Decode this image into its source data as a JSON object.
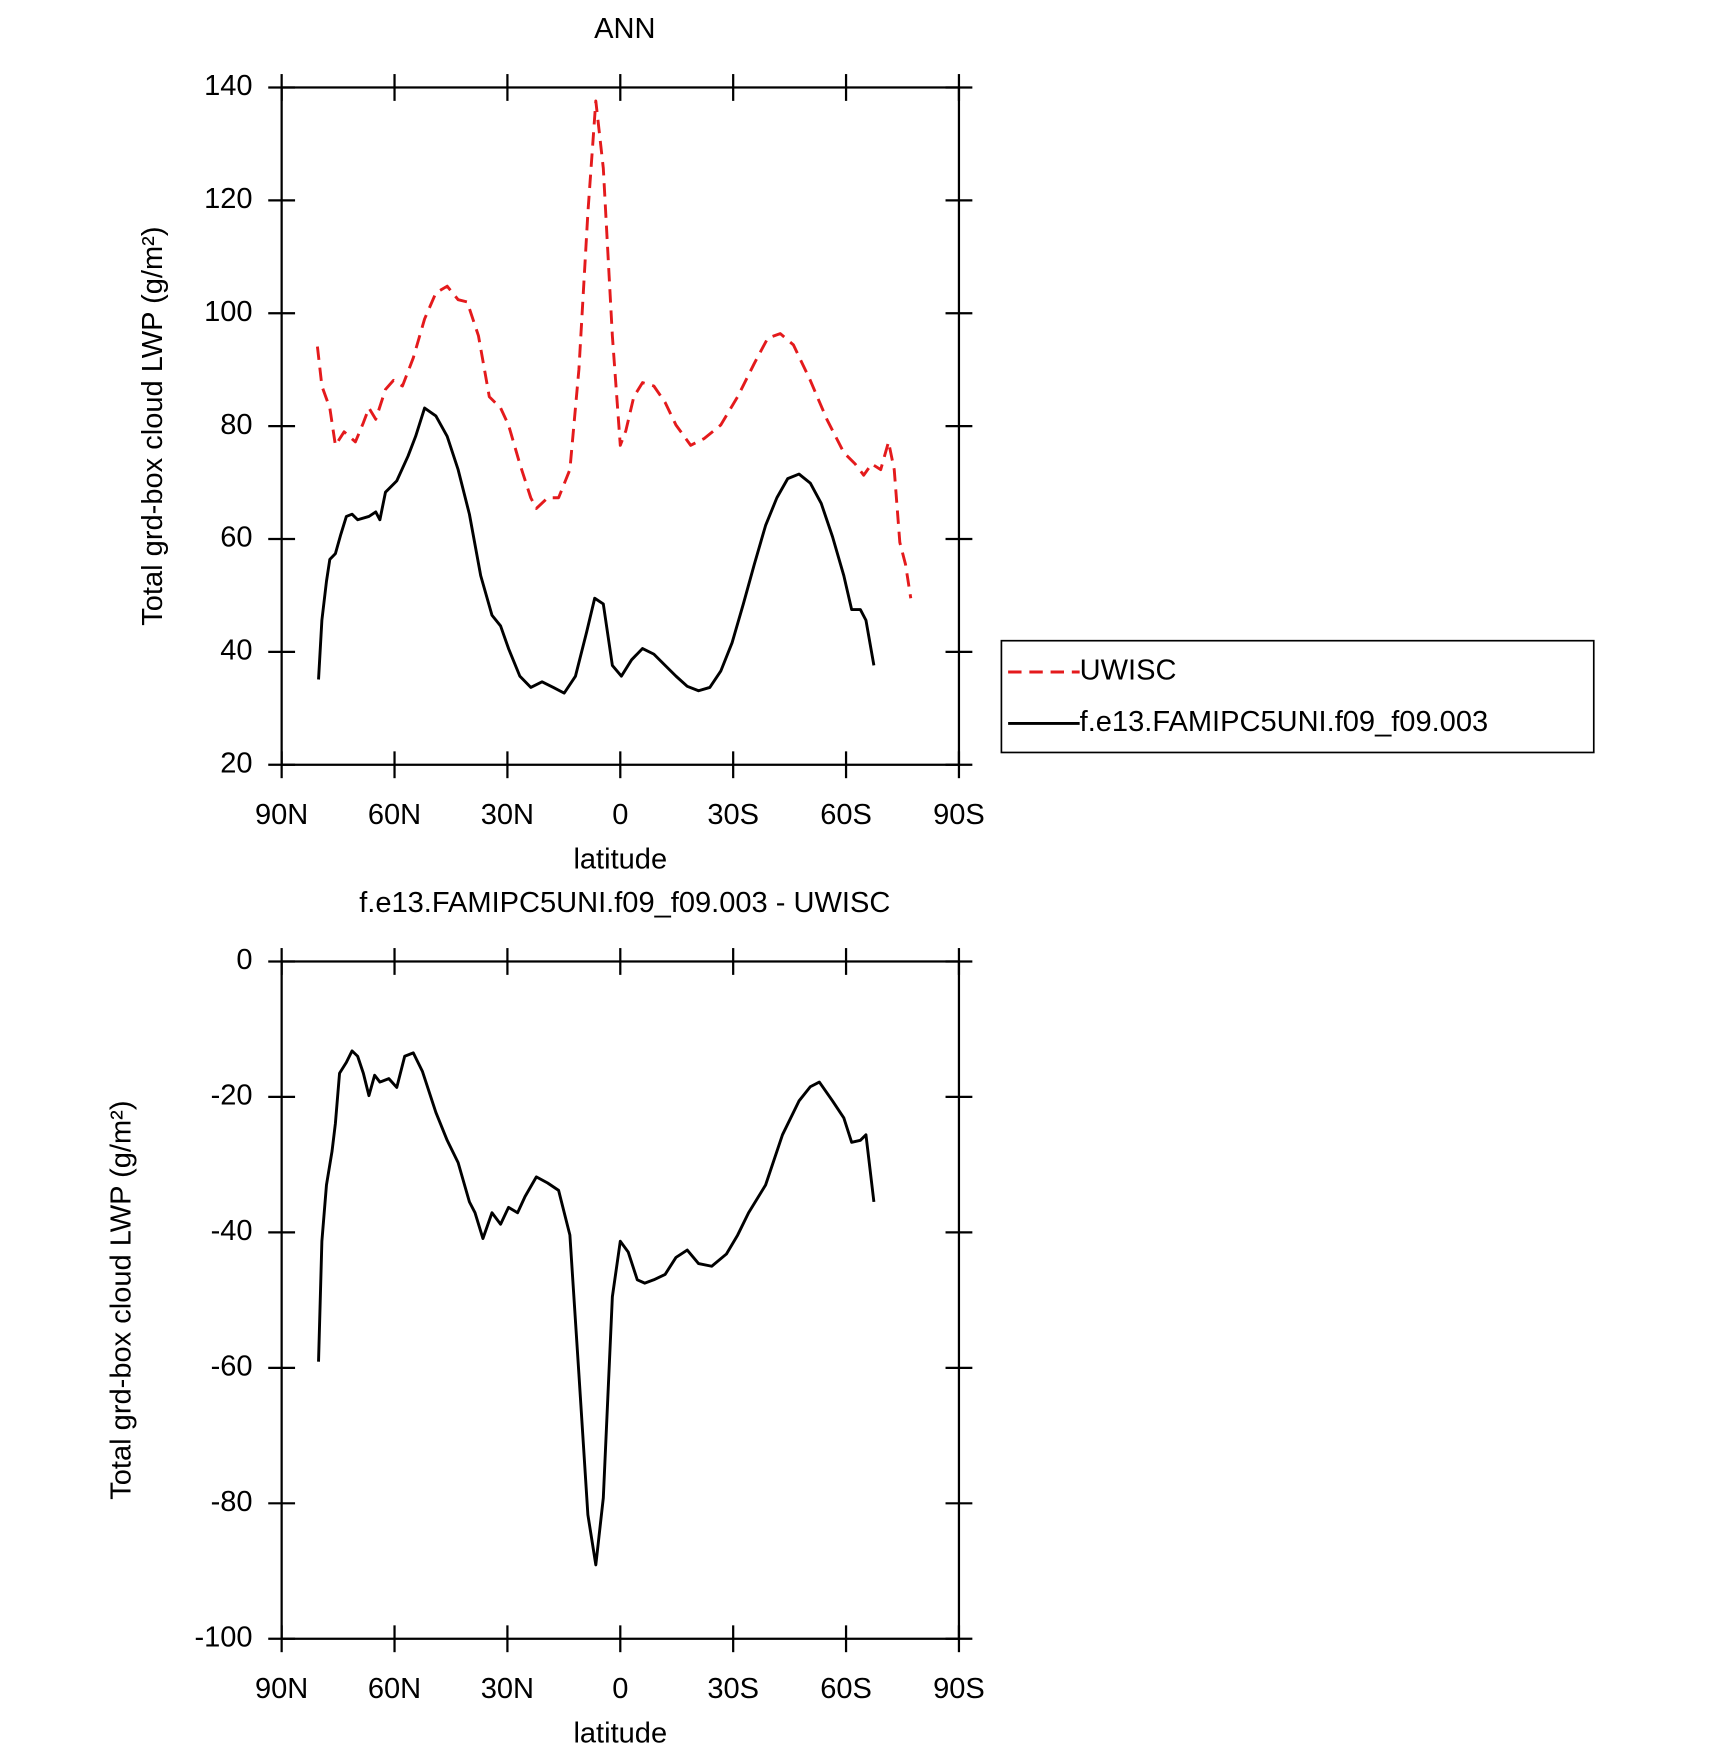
{
  "chart_data": [
    {
      "type": "line",
      "title": "ANN",
      "x_label": "latitude",
      "y_label": "Total grd-box cloud LWP (g/m²)",
      "xlim": [
        90,
        -90
      ],
      "ylim": [
        20,
        140
      ],
      "xticks": [
        {
          "value": 90,
          "label": "90N"
        },
        {
          "value": 60,
          "label": "60N"
        },
        {
          "value": 30,
          "label": "30N"
        },
        0,
        {
          "value": -30,
          "label": "30S"
        },
        {
          "value": -60,
          "label": "60S"
        },
        {
          "value": -90,
          "label": "90S"
        }
      ],
      "yticks": [
        20,
        40,
        60,
        80,
        100,
        120,
        140
      ],
      "legend": "outside right",
      "series": [
        {
          "name": "UWISC",
          "color": "#e41a1c",
          "dash": true,
          "x": [
            80.5,
            79.3,
            77.2,
            75.7,
            73.4,
            70.4,
            68.3,
            66.8,
            65,
            62.4,
            60.3,
            57.9,
            55,
            52,
            49,
            46,
            43.1,
            40.7,
            37.7,
            34.8,
            31.8,
            29.7,
            26.7,
            23.8,
            22.3,
            19.3,
            16.4,
            13.4,
            11,
            8.6,
            6.5,
            4.5,
            2.1,
            0,
            -1.5,
            -3.6,
            -5.9,
            -8.9,
            -11.9,
            -14.8,
            -18.7,
            -22.3,
            -26.7,
            -31.2,
            -35.6,
            -39.2,
            -42.5,
            -46,
            -50.5,
            -54.9,
            -59.4,
            -62.4,
            -64.7,
            -66.8,
            -69.2,
            -71.3,
            -72.8,
            -74.3,
            -75.8,
            -77.2
          ],
          "values": [
            94.1,
            87.1,
            83.2,
            76.6,
            79,
            77.2,
            80.6,
            83.2,
            81.2,
            86.5,
            88.1,
            87.1,
            92.1,
            99,
            103.6,
            104.8,
            102.4,
            102,
            96,
            85.2,
            83.2,
            80.2,
            73.3,
            67.3,
            65.4,
            67.3,
            67.3,
            72.3,
            90.1,
            117.8,
            137.6,
            125.7,
            96,
            76.6,
            79.2,
            85.2,
            87.7,
            87.1,
            84.2,
            80.2,
            76.6,
            77.8,
            80.2,
            85.2,
            91.1,
            95.6,
            96.4,
            94.4,
            88.1,
            81.2,
            75.3,
            73.3,
            71.3,
            73.3,
            72.3,
            77.2,
            72.3,
            59.4,
            55.5,
            49.5
          ]
        },
        {
          "name": "f.e13.FAMIPC5UNI.f09_f09.003",
          "color": "#000000",
          "x": [
            80.2,
            79.3,
            78.1,
            77.2,
            75.7,
            74.3,
            72.8,
            71.3,
            69.8,
            66.8,
            65,
            63.9,
            62.4,
            59.4,
            56.4,
            54.4,
            52,
            49,
            46,
            43.1,
            40.1,
            37.1,
            34.1,
            31.8,
            29.7,
            26.7,
            23.8,
            20.8,
            17.8,
            14.9,
            11.9,
            8.9,
            6.8,
            4.5,
            2.1,
            -0.3,
            -3,
            -5.9,
            -8.9,
            -11.9,
            -14.8,
            -17.8,
            -20.8,
            -23.8,
            -26.7,
            -29.7,
            -32.7,
            -35.6,
            -38.6,
            -41.6,
            -44.5,
            -47.5,
            -50.5,
            -53.4,
            -56.4,
            -59.4,
            -61.5,
            -63.8,
            -65.3,
            -67.4
          ],
          "values": [
            35.1,
            45.6,
            52.5,
            56.4,
            57.4,
            60.8,
            64,
            64.4,
            63.4,
            64,
            64.8,
            63.4,
            68.3,
            70.3,
            74.7,
            78.2,
            83.2,
            81.8,
            78.2,
            72.3,
            64.4,
            53.5,
            46.5,
            44.6,
            40.6,
            35.7,
            33.7,
            34.7,
            33.7,
            32.7,
            35.7,
            43.6,
            49.5,
            48.5,
            37.6,
            35.7,
            38.6,
            40.6,
            39.6,
            37.6,
            35.7,
            33.9,
            33.1,
            33.7,
            36.6,
            41.6,
            48.5,
            55.5,
            62.4,
            67.3,
            70.7,
            71.5,
            69.9,
            66.3,
            60.4,
            53.5,
            47.5,
            47.5,
            45.6,
            37.6
          ]
        }
      ]
    },
    {
      "type": "line",
      "title": "f.e13.FAMIPC5UNI.f09_f09.003 - UWISC",
      "x_label": "latitude",
      "y_label": "Total grd-box cloud LWP (g/m²)",
      "xlim": [
        90,
        -90
      ],
      "ylim": [
        -100,
        0
      ],
      "xticks": [
        {
          "value": 90,
          "label": "90N"
        },
        {
          "value": 60,
          "label": "60N"
        },
        {
          "value": 30,
          "label": "30N"
        },
        0,
        {
          "value": -30,
          "label": "30S"
        },
        {
          "value": -60,
          "label": "60S"
        },
        {
          "value": -90,
          "label": "90S"
        }
      ],
      "yticks": [
        -100,
        -80,
        -60,
        -40,
        -20,
        0
      ],
      "series": [
        {
          "color": "#000000",
          "x": [
            80.2,
            79.3,
            78.1,
            76.6,
            75.7,
            74.6,
            72.8,
            71.3,
            69.8,
            68.3,
            66.8,
            65.3,
            63.9,
            61.5,
            59.4,
            57.3,
            55,
            52.6,
            49,
            46,
            43.1,
            40.1,
            38.6,
            36.5,
            34.1,
            31.8,
            29.7,
            27.3,
            25.3,
            22.3,
            19.3,
            16.4,
            13.4,
            11,
            8.6,
            6.5,
            4.5,
            2.1,
            0,
            -2.1,
            -4.5,
            -6.5,
            -8.9,
            -11.9,
            -14.8,
            -17.8,
            -20.8,
            -24.3,
            -28.2,
            -31.2,
            -34.1,
            -38.6,
            -43.1,
            -47.5,
            -50.5,
            -52.9,
            -56.4,
            -59.4,
            -61.5,
            -63.8,
            -65.3,
            -67.4
          ],
          "values": [
            -59.1,
            -41.3,
            -33,
            -28,
            -23.9,
            -16.5,
            -14.9,
            -13.2,
            -14,
            -16.5,
            -19.8,
            -16.8,
            -17.8,
            -17.3,
            -18.6,
            -14,
            -13.5,
            -16.2,
            -22.3,
            -26.4,
            -29.7,
            -35.5,
            -37.1,
            -40.9,
            -37.1,
            -38.8,
            -36.3,
            -37.1,
            -34.7,
            -31.8,
            -32.7,
            -33.8,
            -40.4,
            -61,
            -81.7,
            -89.1,
            -79.2,
            -49.5,
            -41.3,
            -42.9,
            -47,
            -47.5,
            -47,
            -46.2,
            -43.7,
            -42.6,
            -44.6,
            -45,
            -43.2,
            -40.4,
            -37.1,
            -33,
            -25.6,
            -20.6,
            -18.5,
            -17.8,
            -20.6,
            -23.1,
            -26.7,
            -26.4,
            -25.6,
            -35.5
          ]
        }
      ]
    }
  ]
}
